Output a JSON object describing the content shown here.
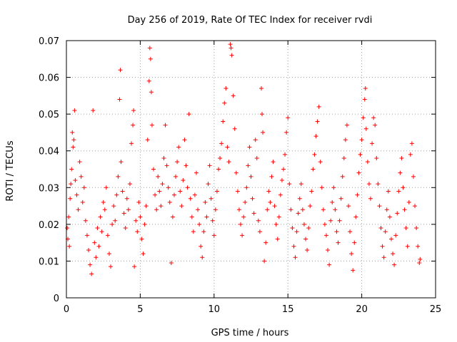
{
  "chart_data": {
    "type": "scatter",
    "title": "Day 256 of 2019, Rate Of TEC Index for receiver rvdi",
    "xlabel": "GPS time / hours",
    "ylabel": "ROTI / TECUs",
    "xlim": [
      0,
      25
    ],
    "ylim": [
      0,
      0.07
    ],
    "xticks": [
      0,
      5,
      10,
      15,
      20,
      25
    ],
    "yticks": [
      0,
      0.01,
      0.02,
      0.03,
      0.04,
      0.05,
      0.06,
      0.07
    ],
    "xtick_labels": [
      "0",
      "5",
      "10",
      "15",
      "20",
      "25"
    ],
    "ytick_labels": [
      "0",
      "0.01",
      "0.02",
      "0.03",
      "0.04",
      "0.05",
      "0.06",
      "0.07"
    ],
    "grid": true,
    "marker": "+",
    "color": "#ff0000",
    "series": [
      {
        "name": "ROTI",
        "points": [
          [
            0.05,
            0.019
          ],
          [
            0.1,
            0.016
          ],
          [
            0.15,
            0.022
          ],
          [
            0.2,
            0.014
          ],
          [
            0.25,
            0.027
          ],
          [
            0.3,
            0.031
          ],
          [
            0.35,
            0.035
          ],
          [
            0.4,
            0.045
          ],
          [
            0.45,
            0.041
          ],
          [
            0.5,
            0.043
          ],
          [
            0.55,
            0.051
          ],
          [
            0.6,
            0.032
          ],
          [
            0.7,
            0.028
          ],
          [
            0.8,
            0.024
          ],
          [
            0.9,
            0.037
          ],
          [
            1.0,
            0.033
          ],
          [
            1.1,
            0.026
          ],
          [
            1.2,
            0.03
          ],
          [
            1.3,
            0.021
          ],
          [
            1.4,
            0.017
          ],
          [
            1.5,
            0.013
          ],
          [
            1.6,
            0.009
          ],
          [
            1.7,
            0.0065
          ],
          [
            1.8,
            0.051
          ],
          [
            1.9,
            0.015
          ],
          [
            2.0,
            0.011
          ],
          [
            2.1,
            0.019
          ],
          [
            2.2,
            0.014
          ],
          [
            2.3,
            0.022
          ],
          [
            2.4,
            0.018
          ],
          [
            2.5,
            0.026
          ],
          [
            2.6,
            0.024
          ],
          [
            2.7,
            0.03
          ],
          [
            2.8,
            0.017
          ],
          [
            2.9,
            0.012
          ],
          [
            3.0,
            0.0085
          ],
          [
            3.1,
            0.02
          ],
          [
            3.2,
            0.025
          ],
          [
            3.3,
            0.021
          ],
          [
            3.4,
            0.028
          ],
          [
            3.5,
            0.033
          ],
          [
            3.6,
            0.054
          ],
          [
            3.65,
            0.062
          ],
          [
            3.7,
            0.037
          ],
          [
            3.8,
            0.029
          ],
          [
            3.9,
            0.023
          ],
          [
            4.0,
            0.019
          ],
          [
            4.1,
            0.027
          ],
          [
            4.2,
            0.024
          ],
          [
            4.3,
            0.031
          ],
          [
            4.4,
            0.042
          ],
          [
            4.5,
            0.047
          ],
          [
            4.55,
            0.051
          ],
          [
            4.6,
            0.0085
          ],
          [
            4.7,
            0.021
          ],
          [
            4.8,
            0.018
          ],
          [
            4.9,
            0.026
          ],
          [
            5.0,
            0.022
          ],
          [
            5.1,
            0.016
          ],
          [
            5.2,
            0.012
          ],
          [
            5.3,
            0.02
          ],
          [
            5.4,
            0.025
          ],
          [
            5.5,
            0.043
          ],
          [
            5.6,
            0.059
          ],
          [
            5.65,
            0.068
          ],
          [
            5.7,
            0.065
          ],
          [
            5.75,
            0.056
          ],
          [
            5.8,
            0.047
          ],
          [
            5.9,
            0.035
          ],
          [
            6.0,
            0.028
          ],
          [
            6.1,
            0.024
          ],
          [
            6.2,
            0.033
          ],
          [
            6.3,
            0.029
          ],
          [
            6.4,
            0.025
          ],
          [
            6.5,
            0.031
          ],
          [
            6.6,
            0.038
          ],
          [
            6.7,
            0.047
          ],
          [
            6.8,
            0.036
          ],
          [
            6.9,
            0.03
          ],
          [
            7.0,
            0.026
          ],
          [
            7.1,
            0.0095
          ],
          [
            7.2,
            0.022
          ],
          [
            7.3,
            0.028
          ],
          [
            7.4,
            0.033
          ],
          [
            7.5,
            0.037
          ],
          [
            7.6,
            0.041
          ],
          [
            7.7,
            0.029
          ],
          [
            7.8,
            0.025
          ],
          [
            7.9,
            0.032
          ],
          [
            8.0,
            0.043
          ],
          [
            8.1,
            0.036
          ],
          [
            8.2,
            0.03
          ],
          [
            8.3,
            0.05
          ],
          [
            8.4,
            0.027
          ],
          [
            8.5,
            0.022
          ],
          [
            8.6,
            0.018
          ],
          [
            8.7,
            0.028
          ],
          [
            8.8,
            0.034
          ],
          [
            8.9,
            0.024
          ],
          [
            9.0,
            0.02
          ],
          [
            9.1,
            0.014
          ],
          [
            9.2,
            0.011
          ],
          [
            9.3,
            0.018
          ],
          [
            9.4,
            0.026
          ],
          [
            9.5,
            0.022
          ],
          [
            9.6,
            0.031
          ],
          [
            9.7,
            0.036
          ],
          [
            9.8,
            0.027
          ],
          [
            9.9,
            0.021
          ],
          [
            10.0,
            0.017
          ],
          [
            10.1,
            0.024
          ],
          [
            10.2,
            0.029
          ],
          [
            10.3,
            0.035
          ],
          [
            10.4,
            0.038
          ],
          [
            10.5,
            0.042
          ],
          [
            10.6,
            0.048
          ],
          [
            10.7,
            0.053
          ],
          [
            10.8,
            0.057
          ],
          [
            10.9,
            0.041
          ],
          [
            11.0,
            0.037
          ],
          [
            11.1,
            0.069
          ],
          [
            11.15,
            0.068
          ],
          [
            11.2,
            0.066
          ],
          [
            11.3,
            0.055
          ],
          [
            11.4,
            0.046
          ],
          [
            11.5,
            0.034
          ],
          [
            11.6,
            0.029
          ],
          [
            11.7,
            0.024
          ],
          [
            11.8,
            0.02
          ],
          [
            11.9,
            0.017
          ],
          [
            12.0,
            0.022
          ],
          [
            12.1,
            0.026
          ],
          [
            12.2,
            0.03
          ],
          [
            12.3,
            0.036
          ],
          [
            12.4,
            0.041
          ],
          [
            12.5,
            0.033
          ],
          [
            12.6,
            0.027
          ],
          [
            12.7,
            0.023
          ],
          [
            12.8,
            0.043
          ],
          [
            12.9,
            0.038
          ],
          [
            13.0,
            0.021
          ],
          [
            13.1,
            0.018
          ],
          [
            13.2,
            0.057
          ],
          [
            13.25,
            0.05
          ],
          [
            13.3,
            0.045
          ],
          [
            13.4,
            0.01
          ],
          [
            13.5,
            0.015
          ],
          [
            13.6,
            0.024
          ],
          [
            13.7,
            0.029
          ],
          [
            13.8,
            0.026
          ],
          [
            13.9,
            0.033
          ],
          [
            14.0,
            0.037
          ],
          [
            14.1,
            0.025
          ],
          [
            14.2,
            0.02
          ],
          [
            14.3,
            0.016
          ],
          [
            14.4,
            0.022
          ],
          [
            14.5,
            0.028
          ],
          [
            14.6,
            0.032
          ],
          [
            14.7,
            0.035
          ],
          [
            14.8,
            0.039
          ],
          [
            14.9,
            0.045
          ],
          [
            15.0,
            0.049
          ],
          [
            15.1,
            0.031
          ],
          [
            15.2,
            0.024
          ],
          [
            15.3,
            0.019
          ],
          [
            15.4,
            0.014
          ],
          [
            15.5,
            0.011
          ],
          [
            15.6,
            0.018
          ],
          [
            15.7,
            0.023
          ],
          [
            15.8,
            0.027
          ],
          [
            15.9,
            0.031
          ],
          [
            16.0,
            0.024
          ],
          [
            16.1,
            0.02
          ],
          [
            16.2,
            0.016
          ],
          [
            16.3,
            0.013
          ],
          [
            16.4,
            0.019
          ],
          [
            16.5,
            0.025
          ],
          [
            16.6,
            0.029
          ],
          [
            16.7,
            0.035
          ],
          [
            16.8,
            0.039
          ],
          [
            16.9,
            0.044
          ],
          [
            17.0,
            0.048
          ],
          [
            17.1,
            0.052
          ],
          [
            17.2,
            0.037
          ],
          [
            17.3,
            0.03
          ],
          [
            17.4,
            0.024
          ],
          [
            17.5,
            0.02
          ],
          [
            17.6,
            0.017
          ],
          [
            17.7,
            0.013
          ],
          [
            17.8,
            0.009
          ],
          [
            17.9,
            0.021
          ],
          [
            18.0,
            0.026
          ],
          [
            18.1,
            0.03
          ],
          [
            18.2,
            0.024
          ],
          [
            18.3,
            0.018
          ],
          [
            18.4,
            0.015
          ],
          [
            18.5,
            0.021
          ],
          [
            18.6,
            0.027
          ],
          [
            18.7,
            0.033
          ],
          [
            18.8,
            0.038
          ],
          [
            18.9,
            0.043
          ],
          [
            19.0,
            0.047
          ],
          [
            19.1,
            0.025
          ],
          [
            19.2,
            0.018
          ],
          [
            19.3,
            0.012
          ],
          [
            19.4,
            0.0075
          ],
          [
            19.5,
            0.015
          ],
          [
            19.6,
            0.022
          ],
          [
            19.7,
            0.028
          ],
          [
            19.8,
            0.034
          ],
          [
            19.9,
            0.039
          ],
          [
            20.0,
            0.043
          ],
          [
            20.1,
            0.049
          ],
          [
            20.2,
            0.054
          ],
          [
            20.25,
            0.057
          ],
          [
            20.3,
            0.046
          ],
          [
            20.4,
            0.037
          ],
          [
            20.5,
            0.031
          ],
          [
            20.6,
            0.027
          ],
          [
            20.7,
            0.042
          ],
          [
            20.8,
            0.049
          ],
          [
            20.9,
            0.047
          ],
          [
            21.0,
            0.038
          ],
          [
            21.1,
            0.031
          ],
          [
            21.2,
            0.025
          ],
          [
            21.3,
            0.019
          ],
          [
            21.4,
            0.014
          ],
          [
            21.5,
            0.011
          ],
          [
            21.6,
            0.018
          ],
          [
            21.7,
            0.024
          ],
          [
            21.8,
            0.029
          ],
          [
            21.9,
            0.022
          ],
          [
            22.0,
            0.016
          ],
          [
            22.1,
            0.012
          ],
          [
            22.2,
            0.009
          ],
          [
            22.3,
            0.017
          ],
          [
            22.4,
            0.023
          ],
          [
            22.5,
            0.029
          ],
          [
            22.6,
            0.034
          ],
          [
            22.7,
            0.038
          ],
          [
            22.8,
            0.03
          ],
          [
            22.9,
            0.024
          ],
          [
            23.0,
            0.019
          ],
          [
            23.1,
            0.014
          ],
          [
            23.2,
            0.026
          ],
          [
            23.3,
            0.039
          ],
          [
            23.4,
            0.042
          ],
          [
            23.5,
            0.033
          ],
          [
            23.6,
            0.025
          ],
          [
            23.7,
            0.019
          ],
          [
            23.8,
            0.014
          ],
          [
            23.9,
            0.0095
          ],
          [
            23.95,
            0.0105
          ]
        ]
      }
    ]
  }
}
